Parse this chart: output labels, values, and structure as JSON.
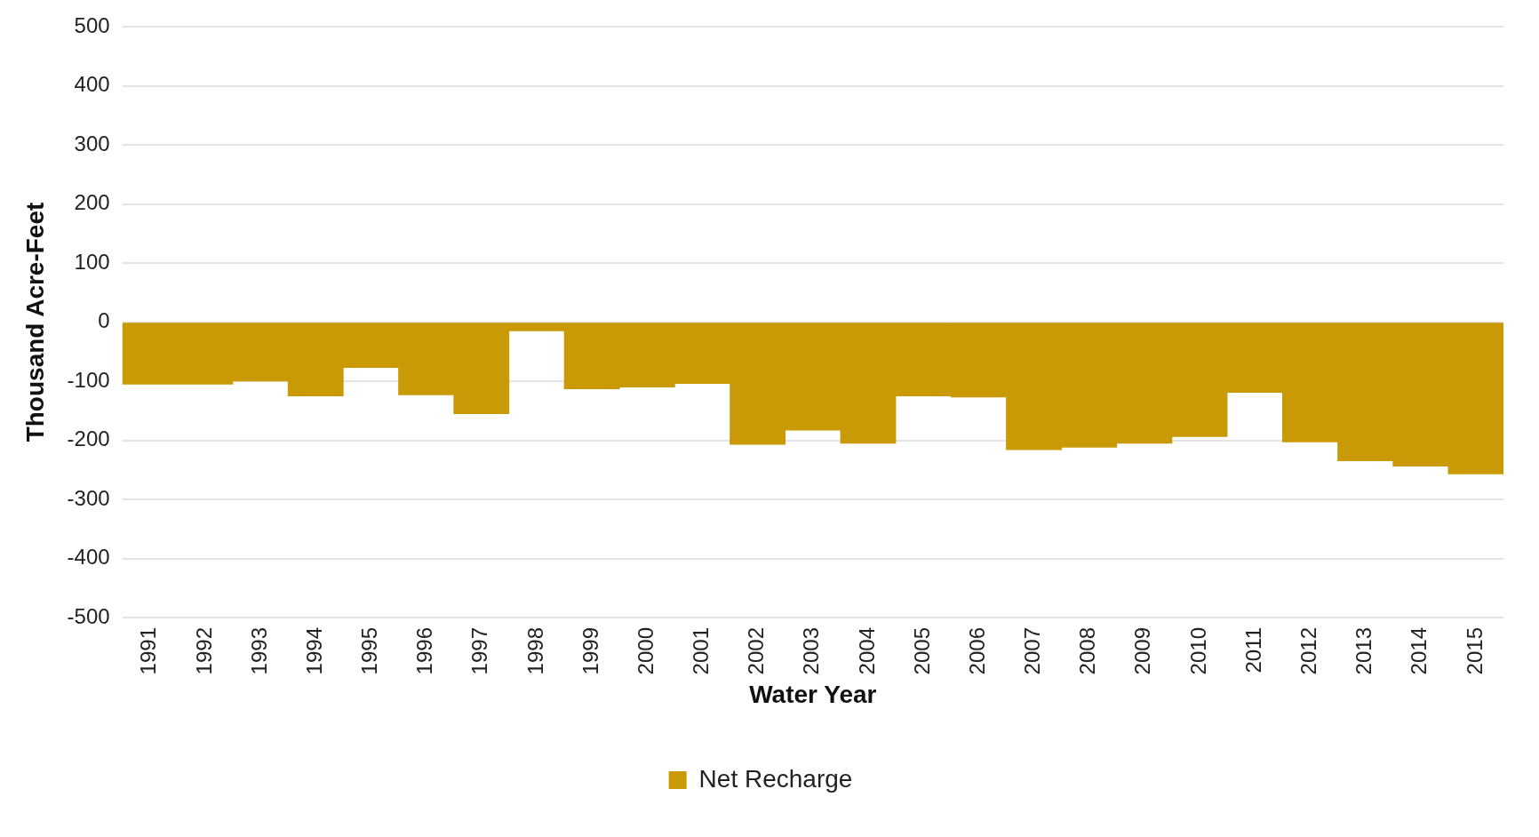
{
  "chart_data": {
    "type": "bar",
    "xlabel": "Water Year",
    "ylabel": "Thousand Acre-Feet",
    "categories": [
      "1991",
      "1992",
      "1993",
      "1994",
      "1995",
      "1996",
      "1997",
      "1998",
      "1999",
      "2000",
      "2001",
      "2002",
      "2003",
      "2004",
      "2005",
      "2006",
      "2007",
      "2008",
      "2009",
      "2010",
      "2011",
      "2012",
      "2013",
      "2014",
      "2015"
    ],
    "series": [
      {
        "name": "Net Recharge",
        "color": "#c99a06",
        "values": [
          -105,
          -105,
          -100,
          -125,
          -77,
          -123,
          -155,
          -15,
          -113,
          -110,
          -104,
          -207,
          -183,
          -205,
          -125,
          -127,
          -216,
          -212,
          -205,
          -194,
          -119,
          -203,
          -235,
          -244,
          -257
        ]
      }
    ],
    "ylim": [
      -500,
      500
    ],
    "yticks": [
      -500,
      -400,
      -300,
      -200,
      -100,
      0,
      100,
      200,
      300,
      400,
      500
    ],
    "grid": "y",
    "legend": "bottom"
  }
}
